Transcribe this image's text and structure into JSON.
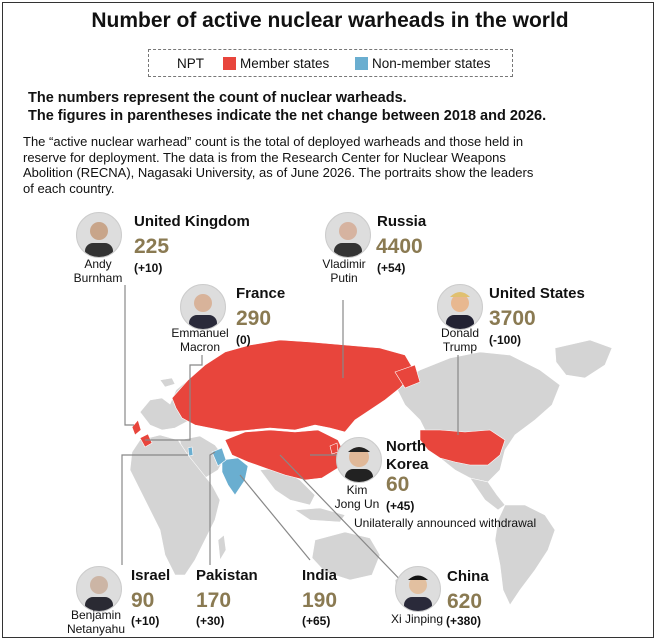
{
  "title": "Number of active nuclear warheads in the world",
  "legend": {
    "npt": "NPT",
    "member": "Member states",
    "nonmember": "Non-member states",
    "member_color": "#e8453c",
    "nonmember_color": "#6aaed0"
  },
  "subtitle_1": "The numbers represent the count of nuclear warheads.",
  "subtitle_2": "The figures in parentheses indicate the net change between 2018 and 2026.",
  "description": [
    "The “active nuclear warhead” count is the total of deployed warheads and those held in",
    "reserve for deployment. The data is from the Research Center for Nuclear Weapons",
    "Abolition (RECNA), Nagasaki University, as of June 2026. The portraits show the leaders",
    "of each country."
  ],
  "countries": {
    "uk": {
      "name": "United Kingdom",
      "count": "225",
      "change": "(+10)",
      "leader_1": "Andy",
      "leader_2": "Burnham"
    },
    "russia": {
      "name": "Russia",
      "count": "4400",
      "change": "(+54)",
      "leader_1": "Vladimir",
      "leader_2": "Putin"
    },
    "france": {
      "name": "France",
      "count": "290",
      "change": "(0)",
      "leader_1": "Emmanuel",
      "leader_2": "Macron"
    },
    "us": {
      "name": "United States",
      "count": "3700",
      "change": "(-100)",
      "leader_1": "Donald",
      "leader_2": "Trump"
    },
    "nk": {
      "name_1": "North",
      "name_2": "Korea",
      "count": "60",
      "change": "(+45)",
      "leader_1": "Kim",
      "leader_2": "Jong Un",
      "note": "Unilaterally announced withdrawal"
    },
    "israel": {
      "name": "Israel",
      "count": "90",
      "change": "(+10)",
      "leader_1": "Benjamin",
      "leader_2": "Netanyahu"
    },
    "pakistan": {
      "name": "Pakistan",
      "count": "170",
      "change": "(+30)"
    },
    "india": {
      "name": "India",
      "count": "190",
      "change": "(+65)"
    },
    "china": {
      "name": "China",
      "count": "620",
      "change": "(+380)",
      "leader_1": "Xi Jinping"
    }
  }
}
